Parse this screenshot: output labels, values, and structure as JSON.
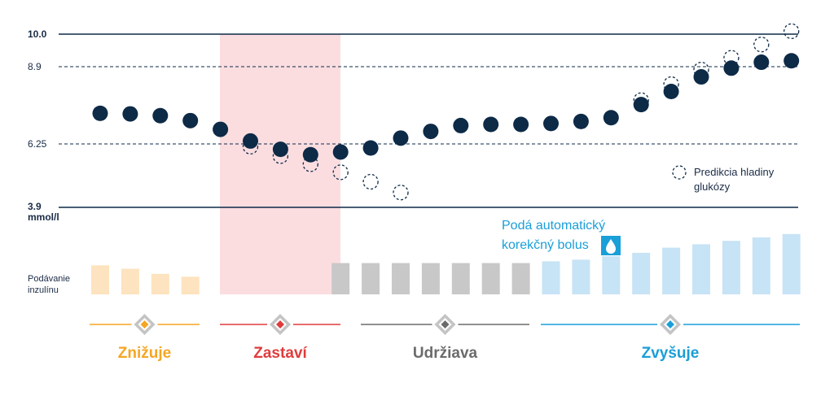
{
  "colors": {
    "dark": "#0d2a47",
    "decrease": "#f5a623",
    "decrease_bar": "#fde3bf",
    "stop": "#e03c3c",
    "stop_zone": "#fbdde0",
    "maintain": "#6b6b6b",
    "maintain_bar": "#c8c8c8",
    "increase": "#1a9fd8",
    "increase_bar": "#c7e3f6"
  },
  "y_axis": {
    "labels": [
      "10.0",
      "8.9",
      "6.25",
      "3.9"
    ],
    "unit": "mmol/l"
  },
  "insulin_label": [
    "Podávanie",
    "inzulínu"
  ],
  "legend": {
    "prediction_label": [
      "Predikcia hladiny",
      "glukózy"
    ]
  },
  "bolus": {
    "label": [
      "Podá automatický",
      "korekčný bolus"
    ],
    "icon": "water-drop-icon"
  },
  "phases": [
    {
      "label": "Znižuje",
      "color": "#f5a623"
    },
    {
      "label": "Zastaví",
      "color": "#e03c3c"
    },
    {
      "label": "Udržiava",
      "color": "#6b6b6b"
    },
    {
      "label": "Zvyšuje",
      "color": "#1a9fd8"
    }
  ],
  "chart_data": {
    "type": "scatter",
    "ylabel": "mmol/l",
    "y_ticks": [
      3.9,
      6.25,
      8.9,
      10.0
    ],
    "series": [
      {
        "name": "",
        "values": [
          7.3,
          7.28,
          7.22,
          7.05,
          6.75,
          6.35,
          6.05,
          5.85,
          5.95,
          6.1,
          6.45,
          6.68,
          6.88,
          6.92,
          6.92,
          6.95,
          7.02,
          7.15,
          7.6,
          8.05,
          8.55,
          8.85,
          9.05,
          9.1
        ]
      },
      {
        "name": "Predikcia hladiny glukózy",
        "points": [
          {
            "index": 5,
            "value": 6.15
          },
          {
            "index": 6,
            "value": 5.8
          },
          {
            "index": 7,
            "value": 5.5
          },
          {
            "index": 8,
            "value": 5.2
          },
          {
            "index": 9,
            "value": 4.85
          },
          {
            "index": 10,
            "value": 4.45
          },
          {
            "index": 18,
            "value": 7.75
          },
          {
            "index": 19,
            "value": 8.3
          },
          {
            "index": 20,
            "value": 8.8
          },
          {
            "index": 21,
            "value": 9.2
          },
          {
            "index": 22,
            "value": 9.65
          },
          {
            "index": 23,
            "value": 10.1
          }
        ]
      }
    ],
    "insulin_bars": {
      "group": [
        "decrease",
        "decrease",
        "decrease",
        "decrease",
        "stop",
        "stop",
        "stop",
        "stop",
        "maintain",
        "maintain",
        "maintain",
        "maintain",
        "maintain",
        "maintain",
        "maintain",
        "increase",
        "increase",
        "increase",
        "increase",
        "increase",
        "increase",
        "increase",
        "increase",
        "increase"
      ],
      "relative_height": [
        0.51,
        0.45,
        0.36,
        0.31,
        0,
        0,
        0,
        0,
        0.55,
        0.55,
        0.55,
        0.55,
        0.55,
        0.55,
        0.55,
        0.58,
        0.61,
        0.67,
        0.73,
        0.82,
        0.88,
        0.94,
        1.0,
        1.06
      ]
    }
  }
}
